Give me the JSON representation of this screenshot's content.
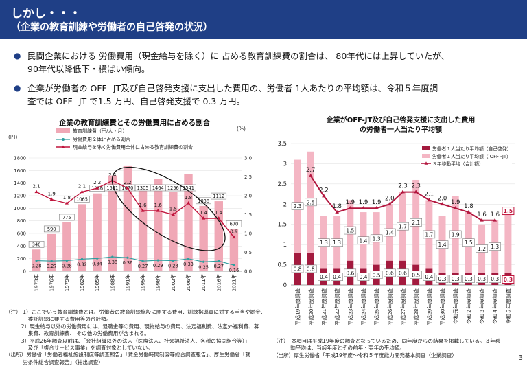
{
  "header": {
    "line1": "しかし・・・",
    "line2": "（企業の教育訓練や労働者の自己啓発の状況）"
  },
  "bullets": [
    {
      "line1": "民間企業における 労働費用（現金給与を除く）に 占める教育訓練費の割合は、 80年代には上昇していたが、",
      "line2": "90年代以降低下・横ばい傾向。"
    },
    {
      "line1": "企業が労働者の OFF -JT及び自己啓発支援に支出した費用の、労働者 1人あたりの平均額は、令和５年度調",
      "line2": "査では OFF -JT で1.5 万円、自己啓発支援で 0.3 万円。"
    }
  ],
  "chart_data": [
    {
      "type": "bar",
      "title": "企業の教育訓練費とその労働費用に占める割合",
      "left_axis_unit": "(円)",
      "right_axis_unit": "(%)",
      "ylim": [
        0,
        1800
      ],
      "yticks": [
        0,
        200,
        400,
        600,
        800,
        1000,
        1200,
        1400,
        1600,
        1800
      ],
      "y2lim": [
        0,
        3.0
      ],
      "y2ticks": [
        "0.0",
        "0.5",
        "1.0",
        "1.5",
        "2.0",
        "2.5",
        "3.0"
      ],
      "categories": [
        "1973年",
        "1976年",
        "1979年",
        "1982年",
        "1985年",
        "1988年",
        "1991年",
        "1995年",
        "1998年",
        "2002年",
        "2006年",
        "2011年",
        "2016年",
        "2021年"
      ],
      "legend": [
        "教育訓練費（円/人・月）",
        "労働費用全体に占める割合",
        "現金給与を除く労働費用全体に占める教育訓練費の割合"
      ],
      "series": [
        {
          "name": "教育訓練費（円/人・月）",
          "values": [
            346,
            590,
            775,
            1065,
            1236,
            1521,
            1670,
            1305,
            1464,
            1256,
            1541,
            1038,
            1112,
            670
          ],
          "color": "#f0a8b6"
        },
        {
          "name": "労働費用全体に占める割合",
          "values": [
            0.28,
            0.27,
            0.28,
            0.32,
            0.34,
            0.38,
            0.36,
            0.27,
            0.29,
            0.28,
            0.33,
            0.25,
            0.27,
            0.16
          ],
          "labels": [
            "0.28",
            "0.27",
            "0.28",
            "0.32",
            "0.34",
            "0.38",
            "0.36",
            "0.27",
            "0.29",
            "0.28",
            "0.33",
            "0.25",
            "0.27",
            "0.16"
          ],
          "color": "#2e9e9e"
        },
        {
          "name": "現金給与を除く労働費用全体に占める教育訓練費の割合",
          "values": [
            2.1,
            1.9,
            1.8,
            2.1,
            2.2,
            2.4,
            2.2,
            1.6,
            1.6,
            1.5,
            1.8,
            1.4,
            1.4,
            0.9
          ],
          "labels": [
            "2.1",
            "1.9",
            "1.8",
            "2.1",
            "2.2",
            "2.4",
            "2.2",
            "1.6",
            "1.6",
            "1.5",
            "1.8",
            "1.4",
            "1.4",
            "0.9"
          ],
          "color": "#c0143c"
        }
      ]
    },
    {
      "type": "bar",
      "title": "企業がOFF-JT及び自己啓発支援に支出した費用の労働者一人当たり平均額",
      "title_line1": "企業がOFF-JT及び自己啓発支援に支出した費用",
      "title_line2": "の労働者一人当たり平均額",
      "ylim": [
        0,
        3.5
      ],
      "yticks": [
        "0",
        "0.5",
        "1",
        "1.5",
        "2",
        "2.5",
        "3",
        "3.5"
      ],
      "categories": [
        "平成19年度調査",
        "平成20年度調査",
        "平成21年度調査",
        "平成22年度調査",
        "平成23年度調査",
        "平成24年度調査",
        "平成25年度調査",
        "平成26年度調査",
        "平成27年度調査",
        "平成28年度調査",
        "平成29年度調査",
        "平成30年度調査",
        "令和元年度調査",
        "令和２年度調査",
        "令和３年度調査",
        "令和４年度調査",
        "令和５年度調査"
      ],
      "legend": [
        "労働者１人当たり平均額（自己啓発）",
        "労働者１人当たり平均額（ OFF -JT）",
        "３年移動平均（合計額）"
      ],
      "series": [
        {
          "name": "労働者１人当たり平均額（自己啓発）",
          "values": [
            0.8,
            0.8,
            0.4,
            0.4,
            0.6,
            0.4,
            0.5,
            0.6,
            0.6,
            0.5,
            0.4,
            0.3,
            0.3,
            0.3,
            0.3,
            0.3,
            0.3
          ],
          "labels": [
            "0.8",
            "0.8",
            "0.4",
            "0.4",
            "0.6",
            "0.4",
            "0.5",
            "0.6",
            "0.6",
            "0.5",
            "0.4",
            "0.3",
            "0.3",
            "0.3",
            "0.3",
            "0.3",
            "0.3"
          ],
          "color": "#a31a3e"
        },
        {
          "name": "労働者１人当たり平均額（ OFF -JT）",
          "values": [
            2.3,
            2.5,
            1.3,
            1.3,
            1.5,
            1.4,
            1.3,
            1.4,
            1.7,
            2.1,
            1.7,
            1.4,
            1.9,
            1.5,
            1.2,
            1.3,
            1.5
          ],
          "labels": [
            "2.3",
            "2.5",
            "1.3",
            "1.3",
            "1.5",
            "1.4",
            "1.3",
            "1.4",
            "1.7",
            "2.1",
            "1.7",
            "1.4",
            "1.9",
            "1.5",
            "1.2",
            "1.3",
            "1.5"
          ],
          "color": "#f4b6c4"
        },
        {
          "name": "３年移動平均（合計額）",
          "values": [
            null,
            2.7,
            2.2,
            1.8,
            1.9,
            1.9,
            1.9,
            2.0,
            2.3,
            2.3,
            2.1,
            2.0,
            1.9,
            1.8,
            1.6,
            1.6,
            null
          ],
          "labels": [
            "",
            "2.7",
            "2.2",
            "1.8",
            "1.9",
            "1.9",
            "1.9",
            "2.0",
            "2.3",
            "2.3",
            "2.1",
            "2.0",
            "1.9",
            "1.8",
            "1.6",
            "1.6",
            ""
          ],
          "color": "#b3173f"
        }
      ]
    }
  ],
  "notes_left": [
    "（注） 1）ここでいう教育訓練費とは、労働者の教育訓練施設に関する費用、訓練指導員に対する手当や謝金、",
    "　　　　 委託訓練に要する費用等の合計額。",
    "　　　2）現金給与以外の労働費用には、退職金等の費用、現物給与の費用、法定福利費、法定外福利費、募",
    "　　　　 集費、教育訓練費、 その他の労働費用が含まれる。",
    "　　　3）平成26年調査以前は、「会社組織以外の法人（医療法人、社会福祉法人、各種の協同組合等）」",
    "　　　　 及び「複合サービス事業」を調査対象としていない。",
    "（出所）労働省「労働者福祉施設制度等調査報告」「賃金労働時間制度等総合調査報告」、厚生労働省「就",
    "　　　 労条件総合調査報告」（抽出調査）"
  ],
  "notes_right": [
    "（注）　本項目は平成19年度の調査となっているため、同年度からの結果を掲載している。３年移",
    "　　　 動平均は、当該年度とその前年・翌年の平均値。",
    "（出所）厚生労働省「平成19年度～令和５年度能力開発基本調査（企業調査）"
  ],
  "page_number": "3"
}
